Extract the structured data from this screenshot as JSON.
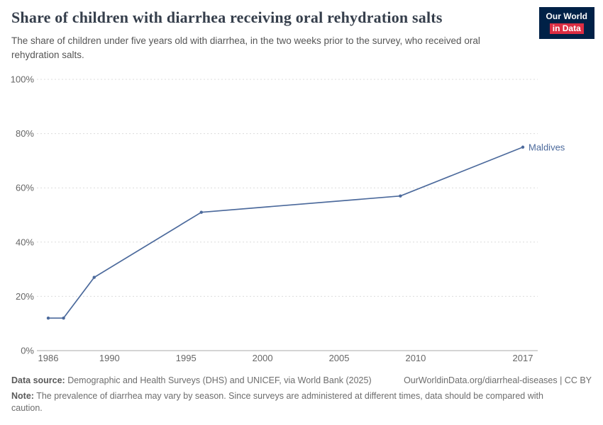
{
  "header": {
    "title": "Share of children with diarrhea receiving oral rehydration salts",
    "subtitle": "The share of children under five years old with diarrhea, in the two weeks prior to the survey, who received oral rehydration salts.",
    "logo": {
      "line1": "Our World",
      "line2": "in Data",
      "bg": "#002147",
      "accent": "#dc2d43"
    }
  },
  "chart_data": {
    "type": "line",
    "title": "Share of children with diarrhea receiving oral rehydration salts",
    "xlabel": "",
    "ylabel": "",
    "xlim": [
      1986,
      2017
    ],
    "ylim": [
      0,
      100
    ],
    "grid": "horizontal-dashed",
    "legend_position": "end-of-line-label",
    "xticks": [
      {
        "value": 1986,
        "label": "1986"
      },
      {
        "value": 1990,
        "label": "1990"
      },
      {
        "value": 1995,
        "label": "1995"
      },
      {
        "value": 2000,
        "label": "2000"
      },
      {
        "value": 2005,
        "label": "2005"
      },
      {
        "value": 2010,
        "label": "2010"
      },
      {
        "value": 2017,
        "label": "2017"
      }
    ],
    "yticks": [
      {
        "value": 0,
        "label": "0%"
      },
      {
        "value": 20,
        "label": "20%"
      },
      {
        "value": 40,
        "label": "40%"
      },
      {
        "value": 60,
        "label": "60%"
      },
      {
        "value": 80,
        "label": "80%"
      },
      {
        "value": 100,
        "label": "100%"
      }
    ],
    "series": [
      {
        "name": "Maldives",
        "color": "#4c6a9c",
        "points": [
          {
            "x": 1986,
            "y": 12
          },
          {
            "x": 1987,
            "y": 12
          },
          {
            "x": 1989,
            "y": 27
          },
          {
            "x": 1996,
            "y": 51
          },
          {
            "x": 2009,
            "y": 57
          },
          {
            "x": 2017,
            "y": 75
          }
        ]
      }
    ]
  },
  "footer": {
    "datasource_label": "Data source:",
    "datasource_text": " Demographic and Health Surveys (DHS) and UNICEF, via World Bank (2025)",
    "link_text": "OurWorldinData.org/diarrheal-diseases | CC BY",
    "note_label": "Note:",
    "note_text": " The prevalence of diarrhea may vary by season. Since surveys are administered at different times, data should be compared with caution."
  }
}
